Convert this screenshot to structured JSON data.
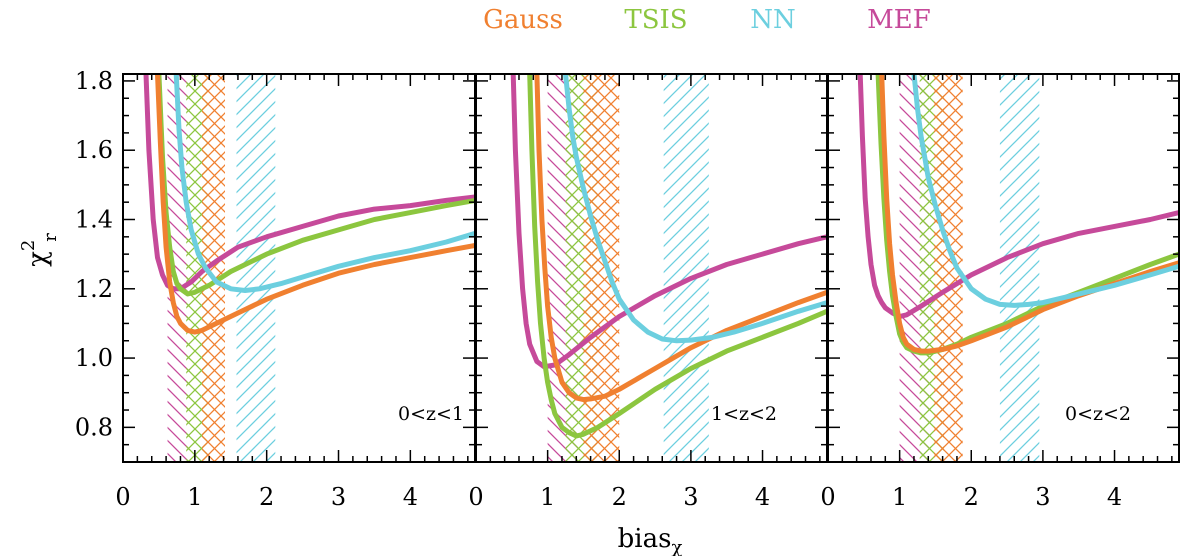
{
  "chart_data": {
    "type": "line",
    "legend": {
      "placement": "top-center",
      "entries": [
        {
          "name": "Gauss",
          "color": "#f08030"
        },
        {
          "name": "TSIS",
          "color": "#8cc63f"
        },
        {
          "name": "NN",
          "color": "#6ccfdf"
        },
        {
          "name": "MEF",
          "color": "#c64a9a"
        }
      ]
    },
    "xlabel": "bias",
    "xlabel_sub": "χ",
    "ylabel": "χ",
    "ylabel_sup": "2",
    "ylabel_sub": "r",
    "xlim": [
      0,
      4.9
    ],
    "ylim": [
      0.7,
      1.82
    ],
    "xticks": [
      0,
      1,
      2,
      3,
      4
    ],
    "yticks": [
      0.8,
      1.0,
      1.2,
      1.4,
      1.6,
      1.8
    ],
    "ytick_labels": [
      "0.8",
      "1.0",
      "1.2",
      "1.4",
      "1.6",
      "1.8"
    ],
    "grid": false,
    "panels": [
      {
        "label": "0<z<1",
        "bands": [
          {
            "name": "MEF",
            "color": "#c64a9a",
            "x0": 0.62,
            "x1": 0.92,
            "hatch": "back"
          },
          {
            "name": "TSIS",
            "color": "#8cc63f",
            "x0": 0.88,
            "x1": 1.18,
            "hatch": "cross"
          },
          {
            "name": "Gauss",
            "color": "#f08030",
            "x0": 1.1,
            "x1": 1.42,
            "hatch": "cross"
          },
          {
            "name": "NN",
            "color": "#6ccfdf",
            "x0": 1.58,
            "x1": 2.12,
            "hatch": "fwd"
          }
        ],
        "series": [
          {
            "name": "MEF",
            "color": "#c64a9a",
            "x": [
              0.32,
              0.36,
              0.42,
              0.48,
              0.55,
              0.62,
              0.7,
              0.8,
              0.95,
              1.1,
              1.3,
              1.6,
              2.0,
              2.5,
              3.0,
              3.5,
              4.0,
              4.5,
              4.9
            ],
            "y": [
              1.82,
              1.6,
              1.4,
              1.29,
              1.24,
              1.21,
              1.2,
              1.2,
              1.22,
              1.25,
              1.28,
              1.32,
              1.35,
              1.38,
              1.41,
              1.43,
              1.44,
              1.455,
              1.465
            ]
          },
          {
            "name": "TSIS",
            "color": "#8cc63f",
            "x": [
              0.5,
              0.55,
              0.6,
              0.65,
              0.7,
              0.75,
              0.8,
              0.9,
              1.0,
              1.2,
              1.5,
              2.0,
              2.5,
              3.0,
              3.5,
              4.0,
              4.5,
              4.9
            ],
            "y": [
              1.82,
              1.58,
              1.42,
              1.32,
              1.25,
              1.215,
              1.2,
              1.185,
              1.19,
              1.21,
              1.25,
              1.3,
              1.34,
              1.37,
              1.4,
              1.42,
              1.44,
              1.455
            ]
          },
          {
            "name": "Gauss",
            "color": "#f08030",
            "x": [
              0.48,
              0.52,
              0.56,
              0.6,
              0.65,
              0.7,
              0.75,
              0.8,
              0.9,
              1.0,
              1.1,
              1.3,
              1.6,
              2.0,
              2.5,
              3.0,
              3.5,
              4.0,
              4.5,
              4.9
            ],
            "y": [
              1.82,
              1.62,
              1.45,
              1.32,
              1.22,
              1.16,
              1.12,
              1.1,
              1.08,
              1.075,
              1.08,
              1.1,
              1.13,
              1.17,
              1.21,
              1.245,
              1.27,
              1.29,
              1.31,
              1.325
            ]
          },
          {
            "name": "NN",
            "color": "#6ccfdf",
            "x": [
              0.74,
              0.78,
              0.82,
              0.88,
              0.95,
              1.05,
              1.15,
              1.3,
              1.5,
              1.7,
              1.9,
              2.2,
              2.6,
              3.0,
              3.5,
              4.0,
              4.5,
              4.9
            ],
            "y": [
              1.82,
              1.66,
              1.55,
              1.45,
              1.37,
              1.3,
              1.26,
              1.22,
              1.2,
              1.195,
              1.2,
              1.215,
              1.24,
              1.265,
              1.29,
              1.31,
              1.335,
              1.36
            ]
          }
        ]
      },
      {
        "label": "1<z<2",
        "bands": [
          {
            "name": "MEF",
            "color": "#c64a9a",
            "x0": 1.0,
            "x1": 1.42,
            "hatch": "back"
          },
          {
            "name": "TSIS",
            "color": "#8cc63f",
            "x0": 1.25,
            "x1": 1.7,
            "hatch": "cross"
          },
          {
            "name": "Gauss",
            "color": "#f08030",
            "x0": 1.5,
            "x1": 2.0,
            "hatch": "cross"
          },
          {
            "name": "NN",
            "color": "#6ccfdf",
            "x0": 2.62,
            "x1": 3.25,
            "hatch": "fwd"
          }
        ],
        "series": [
          {
            "name": "MEF",
            "color": "#c64a9a",
            "x": [
              0.52,
              0.55,
              0.6,
              0.65,
              0.7,
              0.75,
              0.85,
              0.95,
              1.1,
              1.3,
              1.6,
              2.0,
              2.5,
              3.0,
              3.5,
              4.0,
              4.5,
              4.9
            ],
            "y": [
              1.82,
              1.6,
              1.36,
              1.2,
              1.1,
              1.04,
              0.99,
              0.975,
              0.98,
              1.01,
              1.06,
              1.12,
              1.18,
              1.23,
              1.27,
              1.3,
              1.33,
              1.35
            ]
          },
          {
            "name": "TSIS",
            "color": "#8cc63f",
            "x": [
              0.75,
              0.78,
              0.82,
              0.86,
              0.9,
              0.95,
              1.0,
              1.05,
              1.1,
              1.2,
              1.3,
              1.4,
              1.5,
              1.7,
              2.0,
              2.5,
              3.0,
              3.5,
              4.0,
              4.5,
              4.9
            ],
            "y": [
              1.82,
              1.6,
              1.38,
              1.22,
              1.1,
              1.0,
              0.93,
              0.88,
              0.84,
              0.8,
              0.785,
              0.775,
              0.78,
              0.8,
              0.84,
              0.91,
              0.97,
              1.02,
              1.06,
              1.1,
              1.135
            ]
          },
          {
            "name": "Gauss",
            "color": "#f08030",
            "x": [
              0.85,
              0.88,
              0.92,
              0.96,
              1.0,
              1.05,
              1.1,
              1.2,
              1.3,
              1.4,
              1.5,
              1.6,
              1.8,
              2.0,
              2.5,
              3.0,
              3.5,
              4.0,
              4.5,
              4.9
            ],
            "y": [
              1.82,
              1.6,
              1.4,
              1.26,
              1.15,
              1.06,
              1.0,
              0.93,
              0.9,
              0.885,
              0.88,
              0.882,
              0.89,
              0.91,
              0.97,
              1.03,
              1.08,
              1.12,
              1.16,
              1.19
            ]
          },
          {
            "name": "NN",
            "color": "#6ccfdf",
            "x": [
              1.25,
              1.3,
              1.35,
              1.4,
              1.5,
              1.6,
              1.7,
              1.8,
              1.9,
              2.0,
              2.2,
              2.4,
              2.6,
              2.8,
              3.0,
              3.3,
              3.6,
              4.0,
              4.5,
              4.9
            ],
            "y": [
              1.82,
              1.72,
              1.64,
              1.58,
              1.49,
              1.41,
              1.34,
              1.28,
              1.22,
              1.17,
              1.11,
              1.075,
              1.055,
              1.05,
              1.052,
              1.06,
              1.075,
              1.1,
              1.135,
              1.16
            ]
          }
        ]
      },
      {
        "label": "0<z<2",
        "bands": [
          {
            "name": "MEF",
            "color": "#c64a9a",
            "x0": 1.0,
            "x1": 1.42,
            "hatch": "back"
          },
          {
            "name": "TSIS",
            "color": "#8cc63f",
            "x0": 1.28,
            "x1": 1.62,
            "hatch": "cross"
          },
          {
            "name": "Gauss",
            "color": "#f08030",
            "x0": 1.48,
            "x1": 1.88,
            "hatch": "cross"
          },
          {
            "name": "NN",
            "color": "#6ccfdf",
            "x0": 2.4,
            "x1": 2.95,
            "hatch": "fwd"
          }
        ],
        "series": [
          {
            "name": "MEF",
            "color": "#c64a9a",
            "x": [
              0.45,
              0.48,
              0.52,
              0.56,
              0.6,
              0.65,
              0.7,
              0.75,
              0.8,
              0.9,
              1.0,
              1.1,
              1.3,
              1.6,
              2.0,
              2.5,
              3.0,
              3.5,
              4.0,
              4.5,
              4.9
            ],
            "y": [
              1.82,
              1.64,
              1.46,
              1.35,
              1.27,
              1.21,
              1.18,
              1.16,
              1.145,
              1.13,
              1.12,
              1.125,
              1.15,
              1.19,
              1.24,
              1.29,
              1.33,
              1.36,
              1.38,
              1.4,
              1.42
            ]
          },
          {
            "name": "TSIS",
            "color": "#8cc63f",
            "x": [
              0.7,
              0.74,
              0.78,
              0.82,
              0.86,
              0.9,
              0.95,
              1.0,
              1.05,
              1.1,
              1.2,
              1.3,
              1.4,
              1.6,
              1.8,
              2.0,
              2.5,
              3.0,
              3.5,
              4.0,
              4.5,
              4.9
            ],
            "y": [
              1.82,
              1.62,
              1.46,
              1.34,
              1.25,
              1.18,
              1.12,
              1.07,
              1.045,
              1.03,
              1.02,
              1.015,
              1.015,
              1.025,
              1.04,
              1.06,
              1.1,
              1.15,
              1.19,
              1.23,
              1.27,
              1.3
            ]
          },
          {
            "name": "Gauss",
            "color": "#f08030",
            "x": [
              0.75,
              0.78,
              0.82,
              0.86,
              0.9,
              0.95,
              1.0,
              1.05,
              1.1,
              1.2,
              1.3,
              1.4,
              1.6,
              1.8,
              2.0,
              2.5,
              3.0,
              3.5,
              4.0,
              4.5,
              4.9
            ],
            "y": [
              1.82,
              1.64,
              1.46,
              1.33,
              1.24,
              1.16,
              1.1,
              1.06,
              1.04,
              1.025,
              1.02,
              1.02,
              1.025,
              1.035,
              1.05,
              1.09,
              1.14,
              1.18,
              1.215,
              1.25,
              1.275
            ]
          },
          {
            "name": "NN",
            "color": "#6ccfdf",
            "x": [
              1.2,
              1.25,
              1.3,
              1.35,
              1.4,
              1.5,
              1.6,
              1.7,
              1.8,
              1.9,
              2.0,
              2.2,
              2.4,
              2.6,
              2.8,
              3.0,
              3.3,
              3.6,
              4.0,
              4.5,
              4.9
            ],
            "y": [
              1.82,
              1.72,
              1.64,
              1.58,
              1.52,
              1.44,
              1.37,
              1.31,
              1.26,
              1.23,
              1.2,
              1.17,
              1.155,
              1.152,
              1.155,
              1.16,
              1.175,
              1.19,
              1.21,
              1.24,
              1.265
            ]
          }
        ]
      }
    ]
  }
}
